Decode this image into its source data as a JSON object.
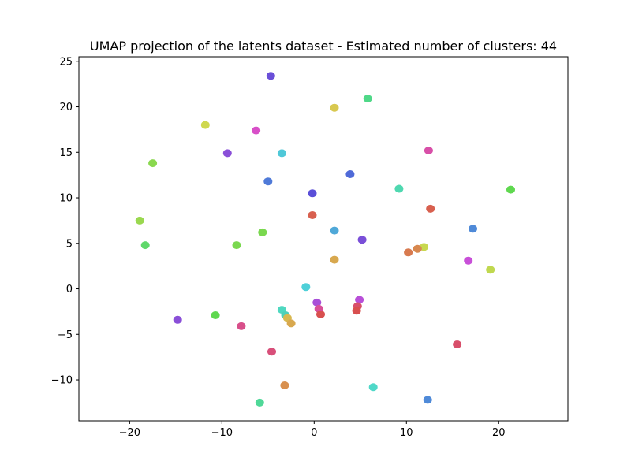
{
  "chart_data": {
    "type": "scatter",
    "title": "UMAP projection of the latents dataset - Estimated number of clusters: 44",
    "xlabel": "",
    "ylabel": "",
    "xlim": [
      -25.5,
      27.5
    ],
    "ylim": [
      -14.5,
      25.5
    ],
    "xticks": [
      -20,
      -10,
      0,
      10,
      20
    ],
    "yticks": [
      -10,
      -5,
      0,
      5,
      10,
      15,
      20,
      25
    ],
    "grid": false,
    "legend": "none",
    "clusters": [
      {
        "x": -4.7,
        "y": 23.4,
        "color": "#6a4fd8"
      },
      {
        "x": 5.8,
        "y": 20.9,
        "color": "#4fd888"
      },
      {
        "x": 2.2,
        "y": 19.9,
        "color": "#d8c84f"
      },
      {
        "x": -11.8,
        "y": 18.0,
        "color": "#cfd84f"
      },
      {
        "x": -6.3,
        "y": 17.4,
        "color": "#d84fc8"
      },
      {
        "x": 12.4,
        "y": 15.2,
        "color": "#d84fa8"
      },
      {
        "x": -9.4,
        "y": 14.9,
        "color": "#8a4fd8"
      },
      {
        "x": -3.5,
        "y": 14.9,
        "color": "#4fc8d8"
      },
      {
        "x": -17.5,
        "y": 13.8,
        "color": "#8ad84f"
      },
      {
        "x": 3.9,
        "y": 12.6,
        "color": "#4f6ad8"
      },
      {
        "x": -5.0,
        "y": 11.8,
        "color": "#4f7ad8"
      },
      {
        "x": 9.2,
        "y": 11.0,
        "color": "#4fd8b0"
      },
      {
        "x": 21.3,
        "y": 10.9,
        "color": "#5fd84f"
      },
      {
        "x": -0.2,
        "y": 10.5,
        "color": "#5a4fd8"
      },
      {
        "x": 12.6,
        "y": 8.8,
        "color": "#d8604f"
      },
      {
        "x": -0.2,
        "y": 8.1,
        "color": "#d8604f"
      },
      {
        "x": -18.9,
        "y": 7.5,
        "color": "#9ad84f"
      },
      {
        "x": 2.2,
        "y": 6.4,
        "color": "#4fa8d8"
      },
      {
        "x": 17.2,
        "y": 6.6,
        "color": "#4f8ad8"
      },
      {
        "x": -5.6,
        "y": 6.2,
        "color": "#7ad84f"
      },
      {
        "x": 5.2,
        "y": 5.4,
        "color": "#7a4fd8"
      },
      {
        "x": -18.3,
        "y": 4.8,
        "color": "#5fd86a"
      },
      {
        "x": -8.4,
        "y": 4.8,
        "color": "#7ad84f"
      },
      {
        "x": 11.9,
        "y": 4.6,
        "color": "#c8d84f"
      },
      {
        "x": 11.2,
        "y": 4.4,
        "color": "#d8884f"
      },
      {
        "x": 10.2,
        "y": 4.0,
        "color": "#d87a4f"
      },
      {
        "x": 2.2,
        "y": 3.2,
        "color": "#d8a84f"
      },
      {
        "x": 16.7,
        "y": 3.1,
        "color": "#c84fd8"
      },
      {
        "x": 19.1,
        "y": 2.1,
        "color": "#c0d84f"
      },
      {
        "x": -0.9,
        "y": 0.2,
        "color": "#4fd0d8"
      },
      {
        "x": 0.3,
        "y": -1.5,
        "color": "#a84fd8"
      },
      {
        "x": 0.5,
        "y": -2.2,
        "color": "#d84f98"
      },
      {
        "x": 0.7,
        "y": -2.8,
        "color": "#d8504f"
      },
      {
        "x": 4.9,
        "y": -1.2,
        "color": "#b84fd8"
      },
      {
        "x": 4.7,
        "y": -1.9,
        "color": "#d84f6a"
      },
      {
        "x": 4.6,
        "y": -2.4,
        "color": "#d84f4f"
      },
      {
        "x": -3.5,
        "y": -2.3,
        "color": "#4fd8c0"
      },
      {
        "x": -3.1,
        "y": -2.9,
        "color": "#4fd0b8"
      },
      {
        "x": -2.9,
        "y": -3.2,
        "color": "#d8b84f"
      },
      {
        "x": -2.5,
        "y": -3.8,
        "color": "#d8a84f"
      },
      {
        "x": -14.8,
        "y": -3.4,
        "color": "#8a4fd8"
      },
      {
        "x": -10.7,
        "y": -2.9,
        "color": "#5fd84f"
      },
      {
        "x": -7.9,
        "y": -4.1,
        "color": "#d84f8a"
      },
      {
        "x": -4.6,
        "y": -6.9,
        "color": "#d84f7a"
      },
      {
        "x": 15.5,
        "y": -6.1,
        "color": "#d84f6a"
      },
      {
        "x": -3.2,
        "y": -10.6,
        "color": "#d8904f"
      },
      {
        "x": 6.4,
        "y": -10.8,
        "color": "#4fd8c8"
      },
      {
        "x": -5.9,
        "y": -12.5,
        "color": "#4fd898"
      },
      {
        "x": 12.3,
        "y": -12.2,
        "color": "#4f8ad8"
      }
    ]
  }
}
